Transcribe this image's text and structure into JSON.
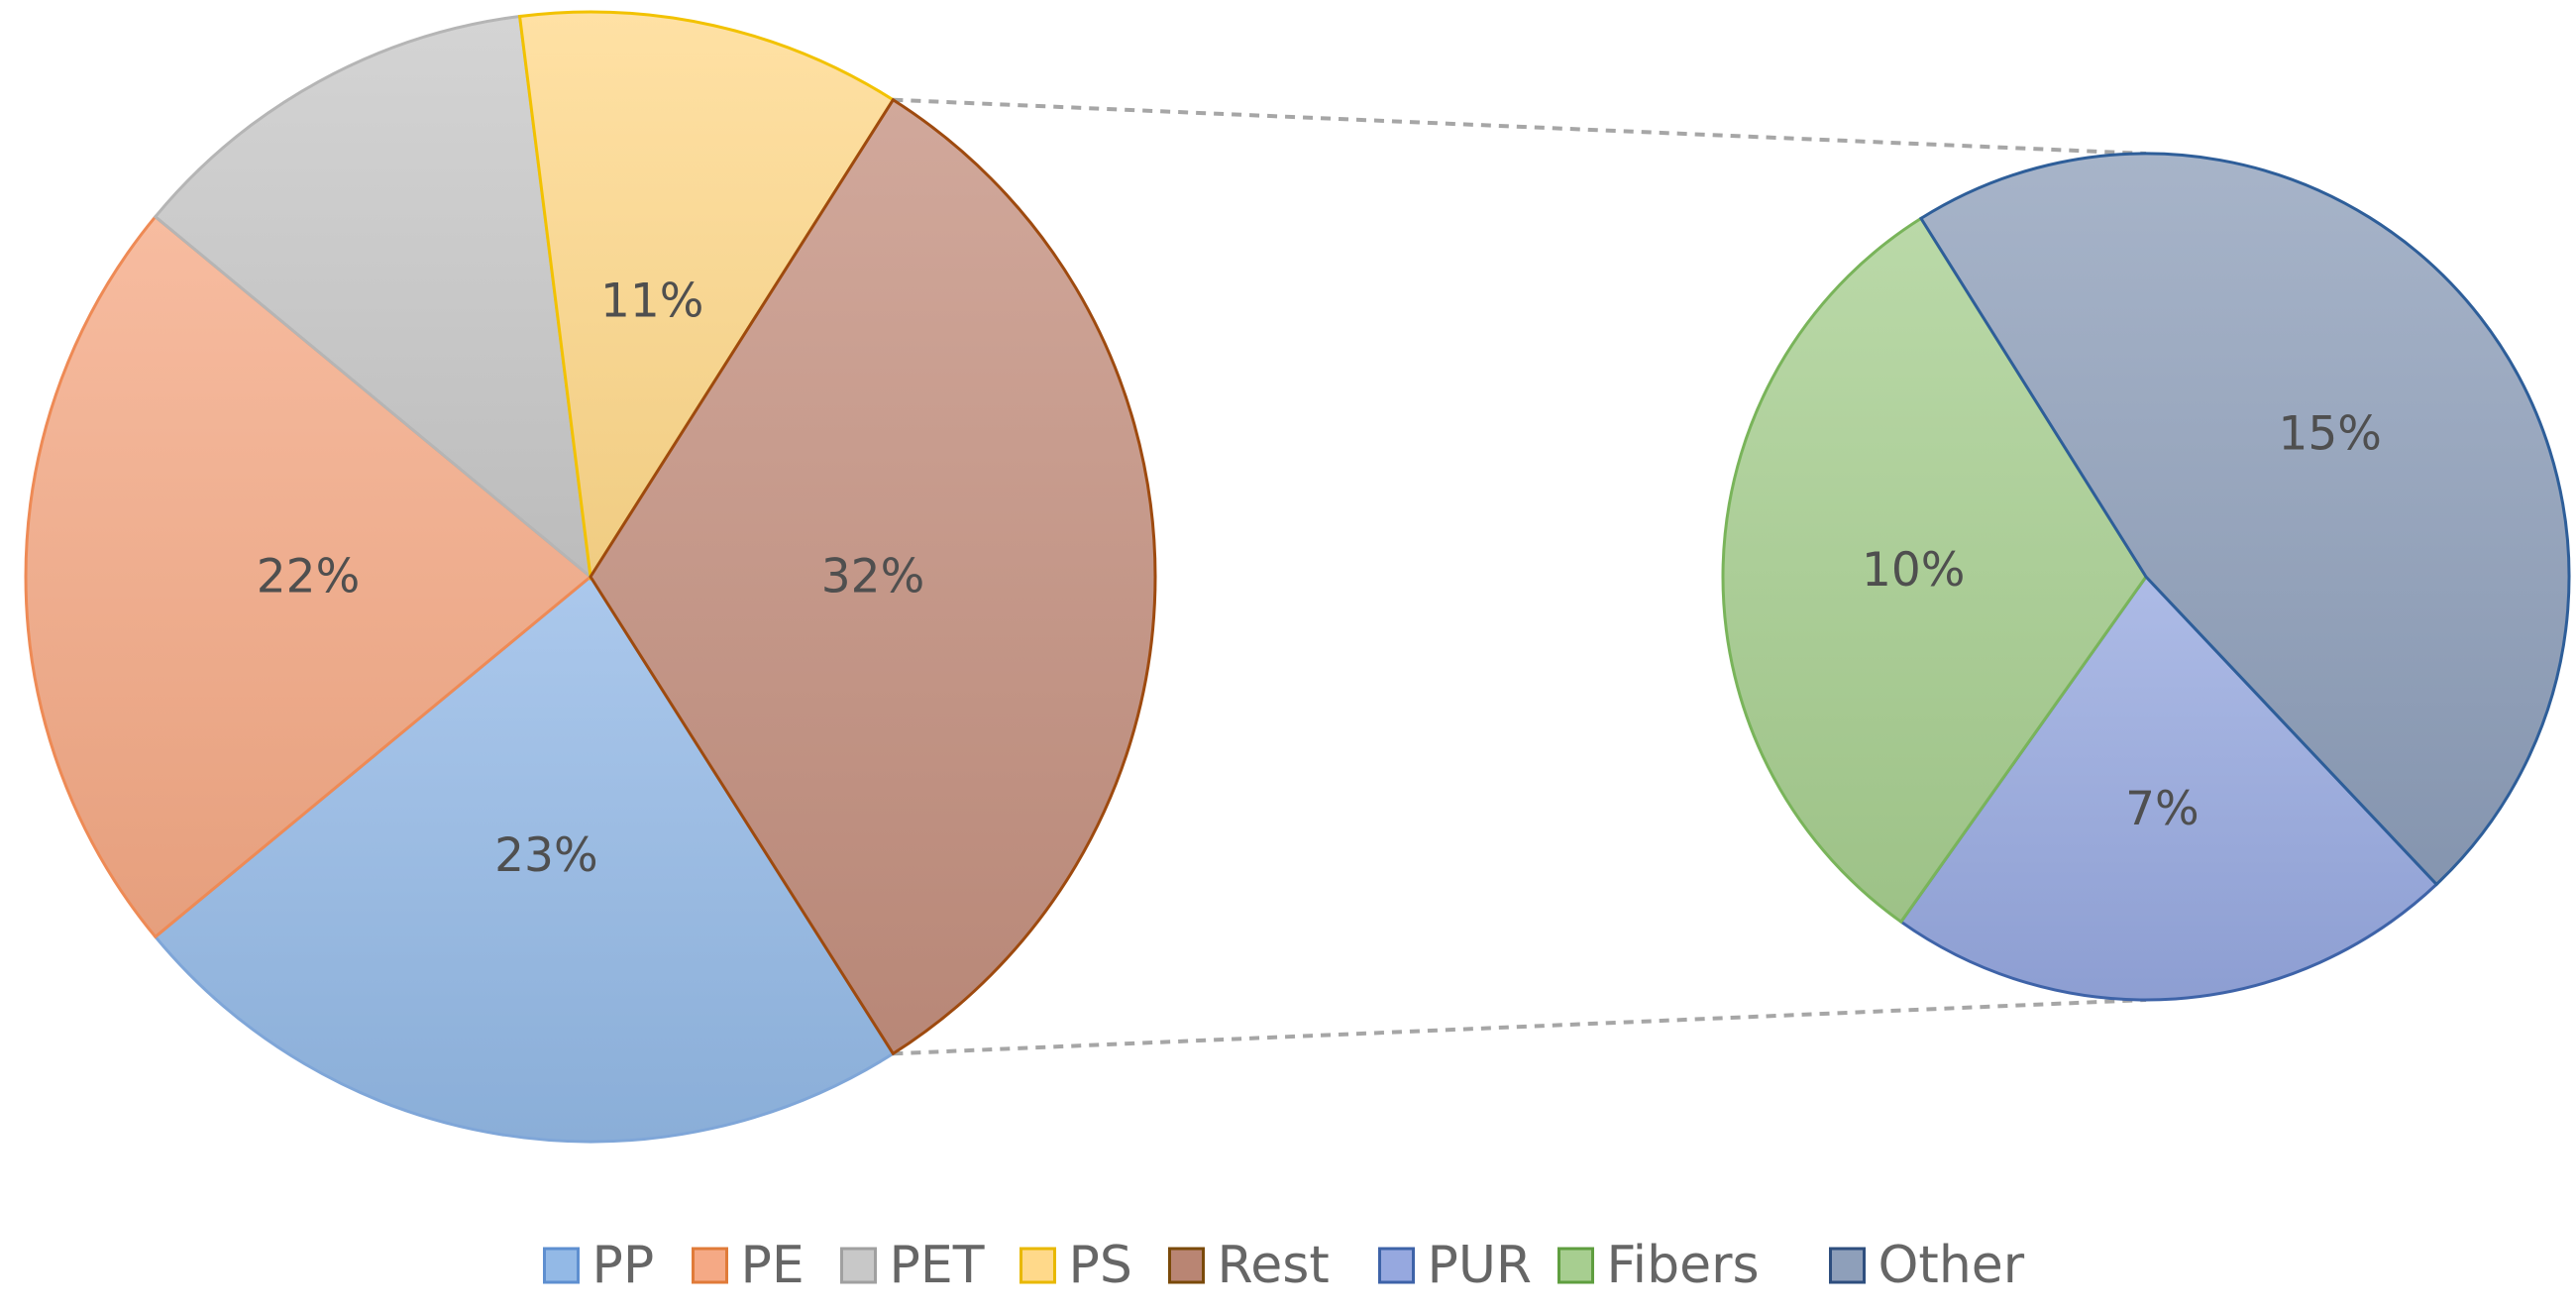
{
  "chart_data": {
    "type": "pie",
    "subtype": "pie-of-pie",
    "title": "",
    "main_pie": {
      "slices": [
        {
          "name": "PP",
          "value": 23,
          "label": "23%",
          "color": "#93B9E6",
          "edge": "#7FA6D8"
        },
        {
          "name": "PE",
          "value": 22,
          "label": "22%",
          "color": "#F5A985",
          "edge": "#EE8A55"
        },
        {
          "name": "PET",
          "value": 12,
          "label": "",
          "color": "#C8C8C8",
          "edge": "#B5B5B5"
        },
        {
          "name": "PS",
          "value": 11,
          "label": "11%",
          "color": "#FFD98A",
          "edge": "#F2C200"
        },
        {
          "name": "Rest",
          "value": 32,
          "label": "32%",
          "color": "#C4907F",
          "edge": "#9E4A0F"
        }
      ]
    },
    "secondary_pie": {
      "of": "Rest",
      "slices": [
        {
          "name": "PUR",
          "value": 7,
          "label": "7%",
          "color": "#96A8DF",
          "edge": "#3E63A8"
        },
        {
          "name": "Fibers",
          "value": 10,
          "label": "10%",
          "color": "#A7CE90",
          "edge": "#79B45A"
        },
        {
          "name": "Other",
          "value": 15,
          "label": "15%",
          "color": "#8E9FBA",
          "edge": "#2E5E99"
        }
      ]
    },
    "legend": {
      "position": "bottom",
      "entries": [
        {
          "name": "PP",
          "color": "#93B9E6",
          "edge": "#5E8FD0"
        },
        {
          "name": "PE",
          "color": "#F5A985",
          "edge": "#E07B39"
        },
        {
          "name": "PET",
          "color": "#C8C8C8",
          "edge": "#A0A0A0"
        },
        {
          "name": "PS",
          "color": "#FFD98A",
          "edge": "#E8B800"
        },
        {
          "name": "Rest",
          "color": "#B98573",
          "edge": "#7A4A0A"
        },
        {
          "name": "PUR",
          "color": "#96A8DF",
          "edge": "#3E63A8"
        },
        {
          "name": "Fibers",
          "color": "#A7CE90",
          "edge": "#5F9E3F"
        },
        {
          "name": "Other",
          "color": "#8E9FBA",
          "edge": "#2E4E7E"
        }
      ]
    }
  }
}
